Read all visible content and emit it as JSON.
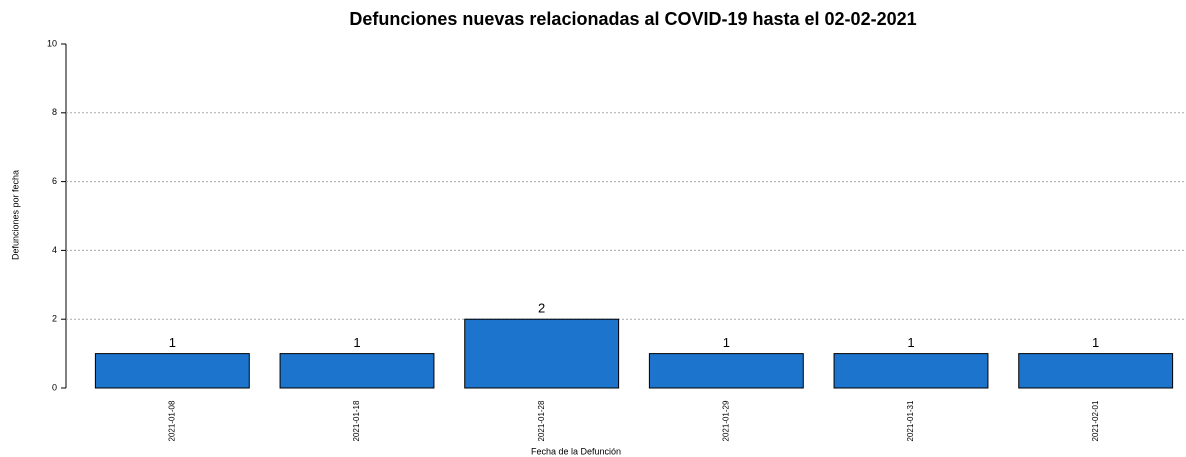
{
  "chart_data": {
    "type": "bar",
    "title": "Defunciones nuevas relacionadas al COVID-19 hasta el 02-02-2021",
    "x_label": "Fecha de la Defunción",
    "y_label": "Defunciones por fecha",
    "categories": [
      "2021-01-08",
      "2021-01-18",
      "2021-01-28",
      "2021-01-29",
      "2021-01-31",
      "2021-02-01"
    ],
    "values": [
      1,
      1,
      2,
      1,
      1,
      1
    ],
    "color": "#1c74cc",
    "ylim": [
      0,
      10
    ],
    "yticks": [
      0,
      2,
      4,
      6,
      8,
      10
    ],
    "grid": true
  }
}
